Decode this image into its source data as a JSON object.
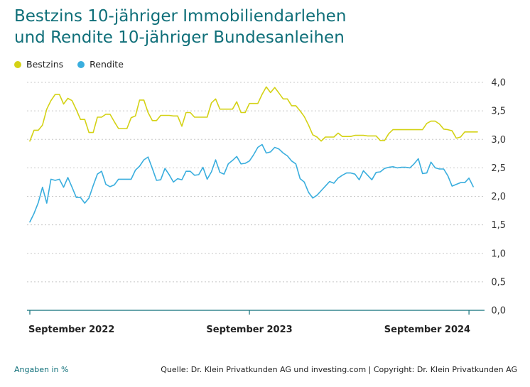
{
  "title_line1": "Bestzins 10-jähriger Immobiliendarlehen",
  "title_line2": "und Rendite 10-jähriger Bundesanleihen",
  "footer": {
    "unit_note": "Angaben in %",
    "source": "Quelle: Dr. Klein Privatkunden AG und investing.com | Copyright: Dr. Klein Privatkunden AG"
  },
  "colors": {
    "title": "#0f6f79",
    "bestzins": "#d4d215",
    "rendite": "#3aaede",
    "axis": "#0f6f79",
    "grid": "#c8c8c8"
  },
  "chart_data": {
    "type": "line",
    "title": "Bestzins 10-jähriger Immobiliendarlehen und Rendite 10-jähriger Bundesanleihen",
    "ylim": [
      0,
      4
    ],
    "y_ticks": [
      "0,0",
      "0,5",
      "1,0",
      "1,5",
      "2,0",
      "2,5",
      "3,0",
      "3,5",
      "4,0"
    ],
    "grid": "horizontal dotted",
    "legend_position": "top-left",
    "x_ticks": [
      "September 2022",
      "September 2023",
      "September 2024"
    ],
    "x_tick_index": [
      0,
      52,
      104
    ],
    "series": [
      {
        "name": "Bestzins",
        "color": "#d4d215",
        "values": [
          2.97,
          3.16,
          3.16,
          3.25,
          3.53,
          3.68,
          3.79,
          3.79,
          3.62,
          3.72,
          3.68,
          3.52,
          3.35,
          3.35,
          3.12,
          3.12,
          3.39,
          3.39,
          3.44,
          3.44,
          3.31,
          3.19,
          3.19,
          3.19,
          3.38,
          3.41,
          3.69,
          3.69,
          3.47,
          3.33,
          3.33,
          3.42,
          3.42,
          3.42,
          3.41,
          3.41,
          3.23,
          3.47,
          3.47,
          3.39,
          3.39,
          3.39,
          3.39,
          3.64,
          3.71,
          3.53,
          3.53,
          3.53,
          3.53,
          3.66,
          3.47,
          3.47,
          3.63,
          3.63,
          3.63,
          3.79,
          3.92,
          3.82,
          3.91,
          3.81,
          3.71,
          3.71,
          3.59,
          3.59,
          3.5,
          3.4,
          3.25,
          3.08,
          3.04,
          2.97,
          3.04,
          3.04,
          3.04,
          3.11,
          3.05,
          3.05,
          3.05,
          3.07,
          3.07,
          3.07,
          3.06,
          3.06,
          3.06,
          2.98,
          2.98,
          3.1,
          3.17,
          3.17,
          3.17,
          3.17,
          3.17,
          3.17,
          3.17,
          3.17,
          3.28,
          3.32,
          3.32,
          3.27,
          3.18,
          3.17,
          3.15,
          3.02,
          3.04,
          3.13,
          3.13,
          3.13,
          3.13
        ]
      },
      {
        "name": "Rendite",
        "color": "#3aaede",
        "values": [
          1.55,
          1.7,
          1.89,
          2.16,
          1.88,
          2.3,
          2.28,
          2.3,
          2.16,
          2.33,
          2.16,
          1.98,
          1.98,
          1.88,
          1.97,
          2.19,
          2.39,
          2.44,
          2.21,
          2.17,
          2.2,
          2.3,
          2.3,
          2.3,
          2.3,
          2.46,
          2.53,
          2.64,
          2.69,
          2.49,
          2.28,
          2.29,
          2.49,
          2.38,
          2.25,
          2.31,
          2.29,
          2.44,
          2.44,
          2.37,
          2.38,
          2.51,
          2.3,
          2.43,
          2.64,
          2.42,
          2.39,
          2.57,
          2.63,
          2.7,
          2.57,
          2.58,
          2.62,
          2.73,
          2.86,
          2.91,
          2.76,
          2.78,
          2.86,
          2.83,
          2.76,
          2.71,
          2.62,
          2.57,
          2.31,
          2.25,
          2.07,
          1.97,
          2.02,
          2.1,
          2.18,
          2.26,
          2.23,
          2.32,
          2.37,
          2.41,
          2.41,
          2.39,
          2.29,
          2.45,
          2.37,
          2.29,
          2.42,
          2.43,
          2.49,
          2.51,
          2.52,
          2.5,
          2.51,
          2.51,
          2.5,
          2.57,
          2.66,
          2.4,
          2.41,
          2.6,
          2.5,
          2.48,
          2.48,
          2.36,
          2.18,
          2.21,
          2.24,
          2.24,
          2.32,
          2.17
        ]
      }
    ]
  }
}
